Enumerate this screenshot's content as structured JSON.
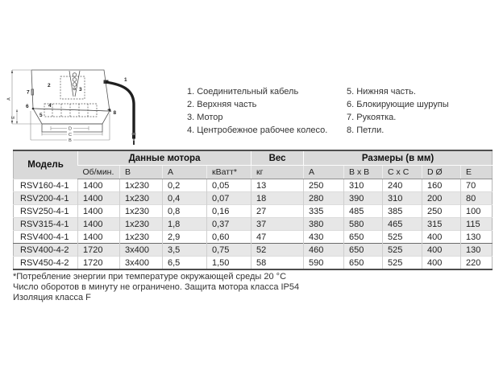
{
  "colors": {
    "header_bg": "#d9d9d9",
    "alt_row_bg": "#e7e7e7",
    "border_dark": "#4d4d4d"
  },
  "diagram": {
    "labels": {
      "cable": "1",
      "upper_part": "2",
      "motor": "3",
      "impeller": "4",
      "lower_part": "5",
      "locking_screws": "6",
      "handle": "7",
      "hinges": "8",
      "dim_a": "A",
      "dim_e": "E",
      "dim_b": "B",
      "dim_c": "C",
      "dim_d": "D"
    }
  },
  "legend": {
    "col1": [
      "1. Соединительный кабель",
      "2. Верхняя часть",
      "3. Мотор",
      "4. Центробежное рабочее колесо."
    ],
    "col2": [
      "5. Нижняя часть.",
      "6. Блокирующие шурупы",
      "7. Рукоятка.",
      "8. Петли."
    ]
  },
  "table": {
    "groups": {
      "model": "Модель",
      "motor": "Данные мотора",
      "weight": "Вес",
      "dimensions": "Размеры (в мм)"
    },
    "subheaders": [
      "Об/мин.",
      "В",
      "А",
      "кВатт*",
      "кг",
      "A",
      "B x B",
      "C x C",
      "D Ø",
      "E"
    ],
    "rows": [
      [
        "RSV160-4-1",
        "1400",
        "1x230",
        "0,2",
        "0,05",
        "13",
        "250",
        "310",
        "240",
        "160",
        "70"
      ],
      [
        "RSV200-4-1",
        "1400",
        "1x230",
        "0,4",
        "0,07",
        "18",
        "280",
        "390",
        "310",
        "200",
        "80"
      ],
      [
        "RSV250-4-1",
        "1400",
        "1x230",
        "0,8",
        "0,16",
        "27",
        "335",
        "485",
        "385",
        "250",
        "100"
      ],
      [
        "RSV315-4-1",
        "1400",
        "1x230",
        "1,8",
        "0,37",
        "37",
        "380",
        "580",
        "465",
        "315",
        "115"
      ],
      [
        "RSV400-4-1",
        "1400",
        "1x230",
        "2,9",
        "0,60",
        "47",
        "430",
        "650",
        "525",
        "400",
        "130"
      ],
      [
        "RSV400-4-2",
        "1720",
        "3x400",
        "3,5",
        "0,75",
        "52",
        "460",
        "650",
        "525",
        "400",
        "130"
      ],
      [
        "RSV450-4-2",
        "1720",
        "3x400",
        "6,5",
        "1,50",
        "58",
        "590",
        "650",
        "525",
        "400",
        "220"
      ]
    ]
  },
  "notes": [
    "*Потребление энергии при температуре окружающей среды 20 °C",
    "Число оборотов в минуту не ограничено. Защита мотора класса IP54",
    "Изоляция класса F"
  ]
}
